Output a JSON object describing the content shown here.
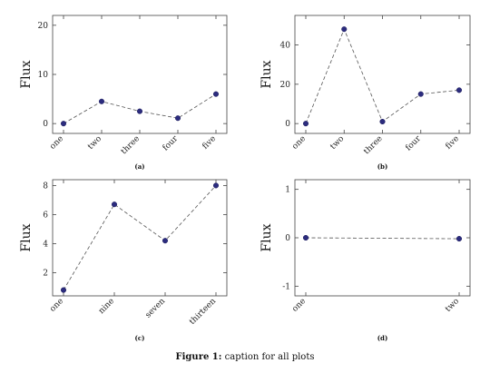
{
  "figure_caption": {
    "label": "Figure 1:",
    "text": "caption for all plots"
  },
  "chart_data": [
    {
      "type": "line",
      "sublabel": "(a)",
      "ylabel": "Flux",
      "categories": [
        "one",
        "two",
        "three",
        "four",
        "five"
      ],
      "series": [
        {
          "values": [
            0,
            4.5,
            2.5,
            1.1,
            6
          ]
        }
      ],
      "ylim": [
        -2,
        22
      ],
      "yticks": [
        0,
        10,
        20
      ],
      "grid": false,
      "line_style": "dashed",
      "marker": "filled circle",
      "marker_color": "#2c2c7e",
      "line_color": "#555555"
    },
    {
      "type": "line",
      "sublabel": "(b)",
      "ylabel": "Flux",
      "categories": [
        "one",
        "two",
        "three",
        "four",
        "five"
      ],
      "series": [
        {
          "values": [
            0,
            48,
            1,
            15,
            17
          ]
        }
      ],
      "ylim": [
        -5,
        55
      ],
      "yticks": [
        0,
        20,
        40
      ],
      "grid": false,
      "line_style": "dashed",
      "marker": "filled circle",
      "marker_color": "#2c2c7e",
      "line_color": "#555555"
    },
    {
      "type": "line",
      "sublabel": "(c)",
      "ylabel": "Flux",
      "categories": [
        "one",
        "nine",
        "seven",
        "thirteen"
      ],
      "series": [
        {
          "values": [
            0.8,
            6.7,
            4.2,
            8
          ]
        }
      ],
      "ylim": [
        0.4,
        8.4
      ],
      "yticks": [
        2,
        4,
        6,
        8
      ],
      "grid": false,
      "line_style": "dashed",
      "marker": "filled circle",
      "marker_color": "#2c2c7e",
      "line_color": "#555555"
    },
    {
      "type": "line",
      "sublabel": "(d)",
      "ylabel": "Flux",
      "categories": [
        "one",
        "two"
      ],
      "series": [
        {
          "values": [
            0,
            -0.02
          ]
        }
      ],
      "ylim": [
        -1.2,
        1.2
      ],
      "yticks": [
        -1,
        0,
        1
      ],
      "grid": false,
      "line_style": "dashed",
      "marker": "filled circle",
      "marker_color": "#2c2c7e",
      "line_color": "#555555"
    }
  ]
}
